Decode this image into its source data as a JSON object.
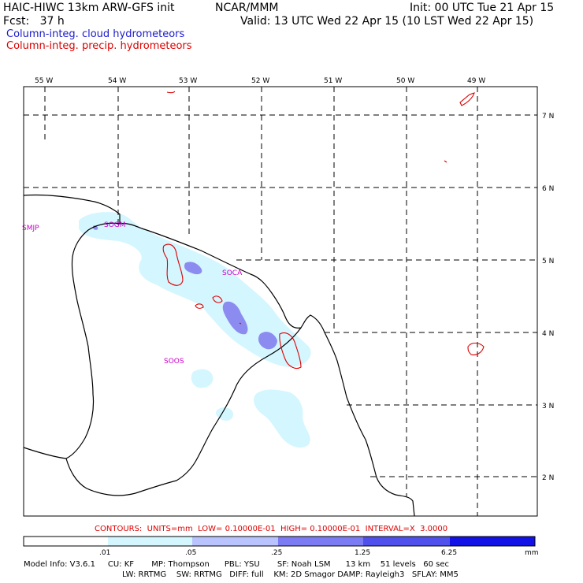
{
  "header": {
    "model_title": "HAIC-HIWC 13km ARW-GFS init",
    "org": "NCAR/MMM",
    "init": "Init: 00 UTC Tue 21 Apr 15",
    "fcst": "Fcst:   37 h",
    "valid": "Valid: 13 UTC Wed 22 Apr 15 (10 LST Wed 22 Apr 15)",
    "field_blue": "Column-integ. cloud hydrometeors",
    "field_red": "Column-integ. precip. hydrometeors"
  },
  "map": {
    "lon_labels": [
      "55 W",
      "54 W",
      "53 W",
      "52 W",
      "51 W",
      "50 W",
      "49 W"
    ],
    "lat_labels": [
      "7 N",
      "6 N",
      "5 N",
      "4 N",
      "3 N",
      "2 N"
    ],
    "stations": [
      "SMJP",
      "SOGM",
      "SOCA",
      "SOOS"
    ]
  },
  "contours_line": "CONTOURS:  UNITS=mm  LOW= 0.10000E-01  HIGH= 0.10000E-01  INTERVAL=X  3.0000",
  "colorbar": {
    "ticks": [
      ".01",
      ".05",
      ".25",
      "1.25",
      "6.25"
    ],
    "unit": "mm",
    "colors": [
      "#ffffff",
      "#d4f6ff",
      "#b9c4ff",
      "#7b7cf3",
      "#5050ec",
      "#1212e6"
    ]
  },
  "footer": {
    "line1": "Model Info: V3.6.1     CU: KF       MP: Thompson      PBL: YSU       SF: Noah LSM      13 km    51 levels   60 sec",
    "line2": "LW: RRTMG    SW: RRTMG   DIFF: full    KM: 2D Smagor DAMP: Rayleigh3   SFLAY: MM5"
  }
}
